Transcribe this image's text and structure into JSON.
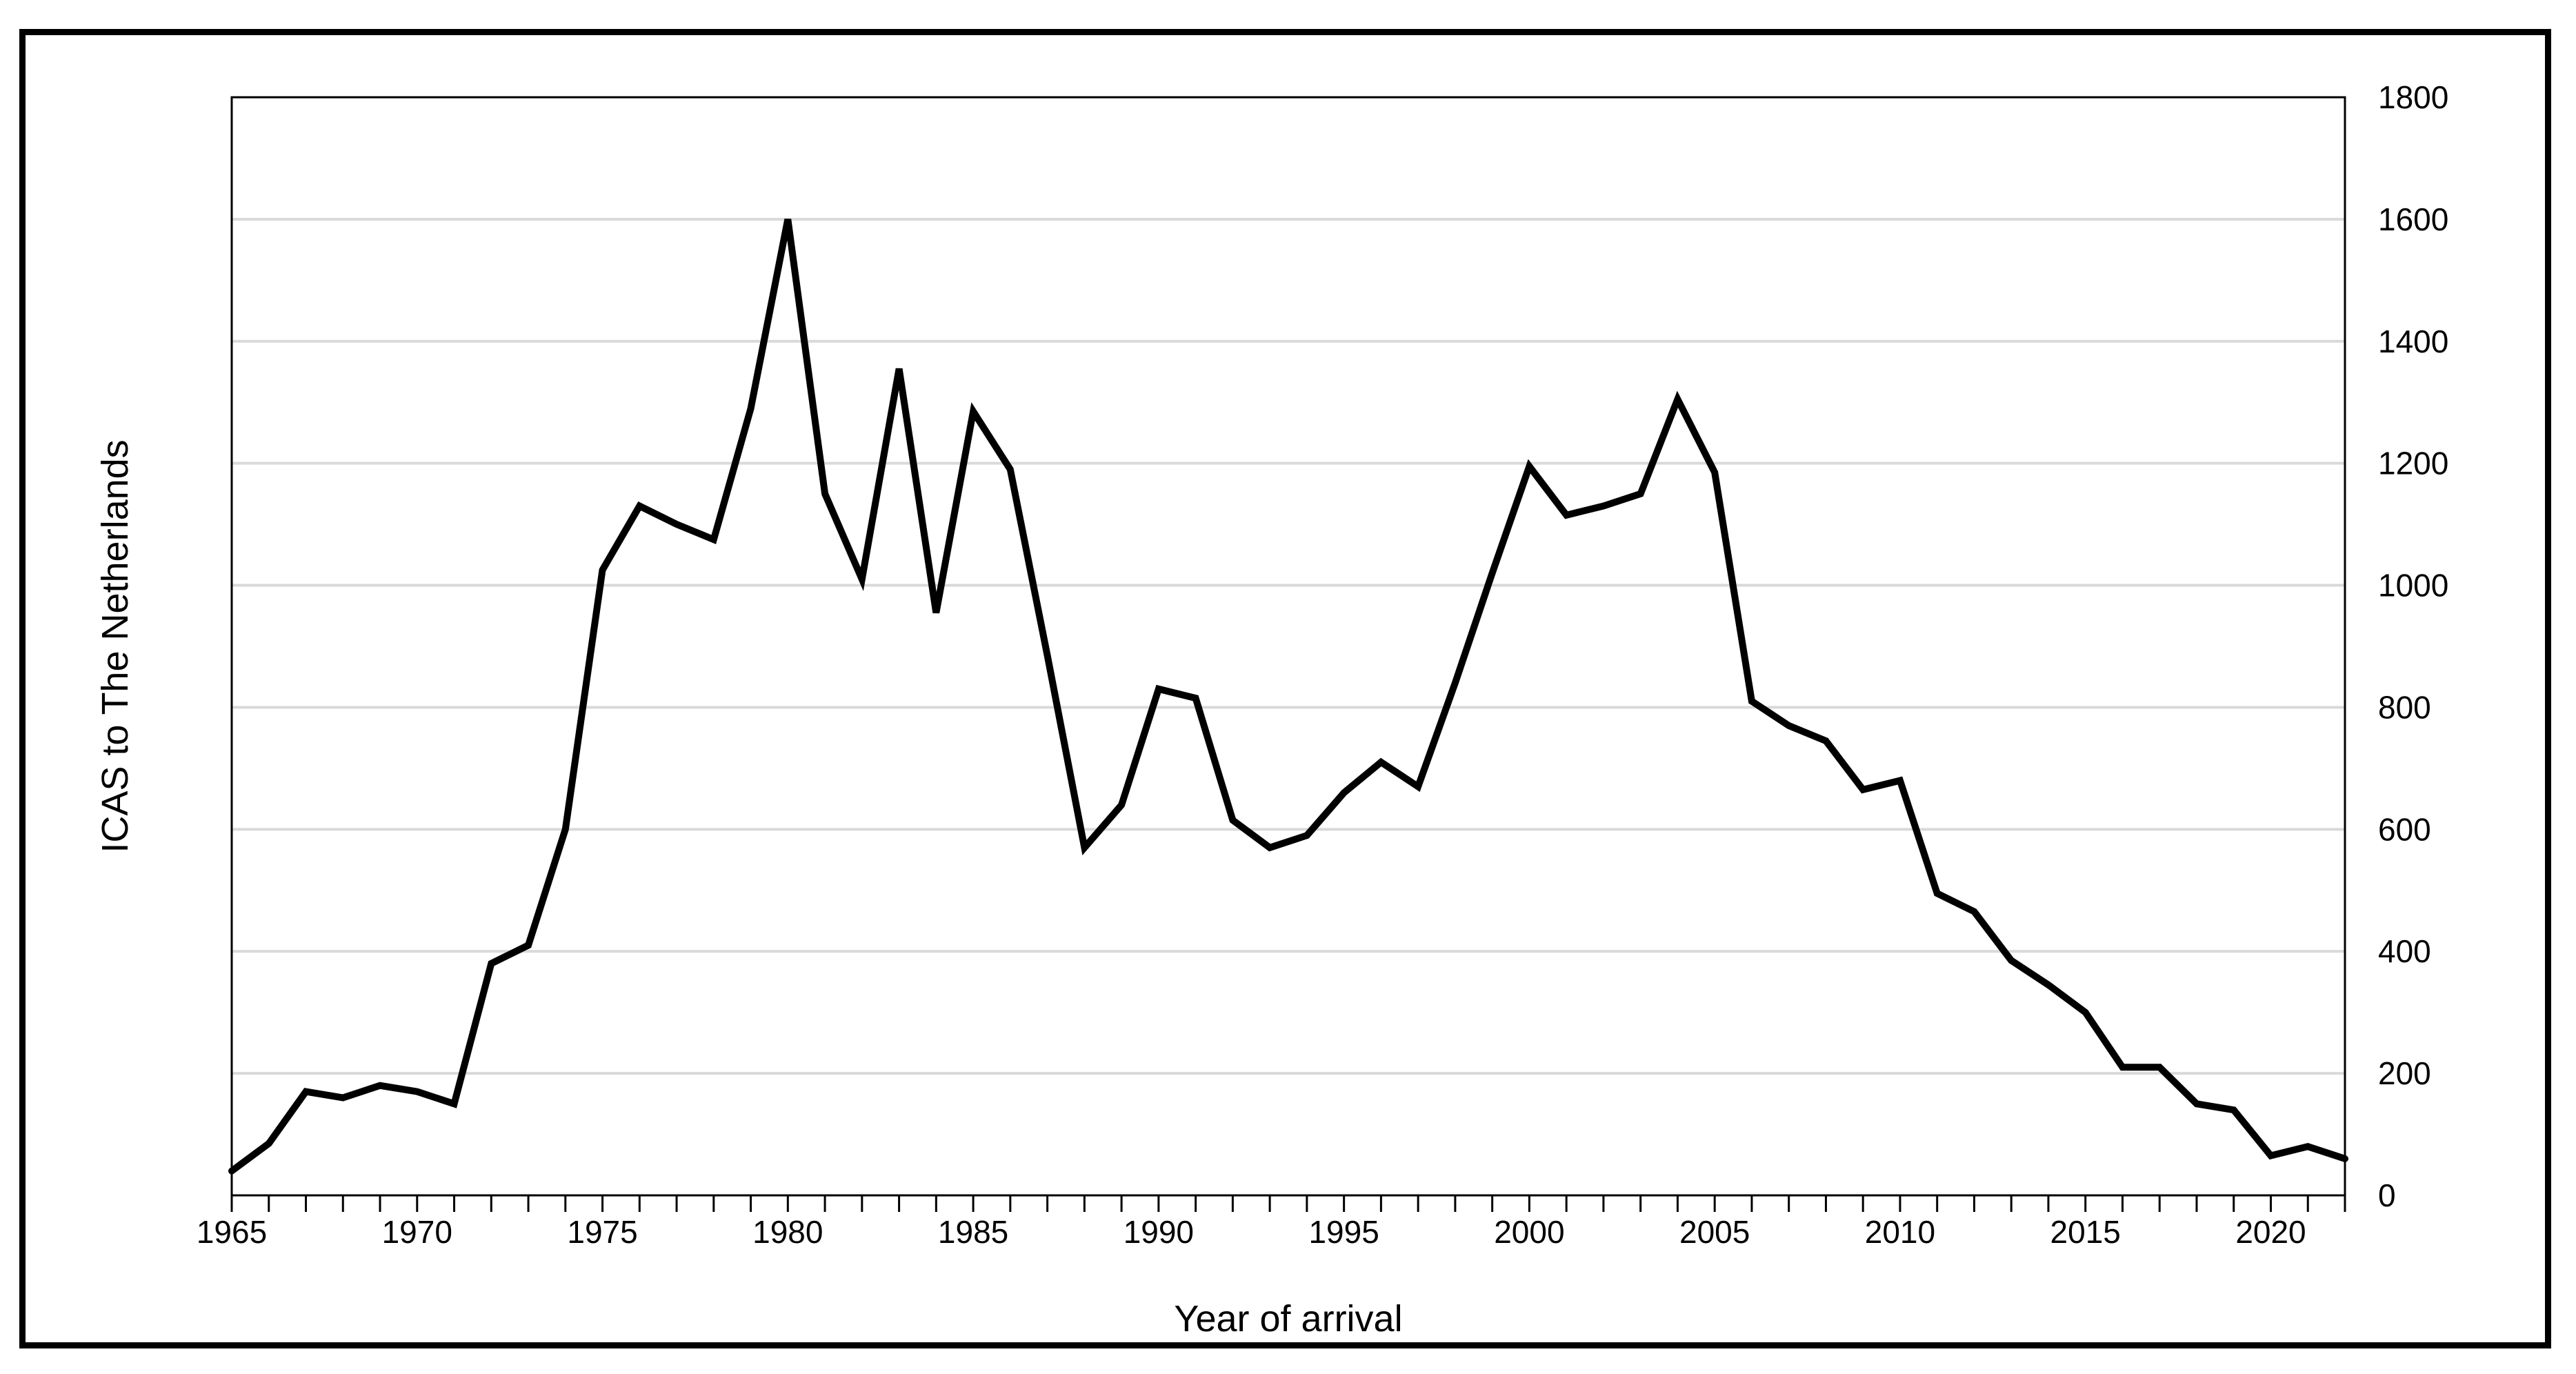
{
  "figure": {
    "y_axis_title": "ICAS to The Netherlands",
    "x_axis_title": "Year of arrival"
  },
  "chart_data": {
    "type": "line",
    "title": "",
    "xlabel": "Year of arrival",
    "ylabel": "ICAS to The Netherlands",
    "x": [
      1965,
      1966,
      1967,
      1968,
      1969,
      1970,
      1971,
      1972,
      1973,
      1974,
      1975,
      1976,
      1977,
      1978,
      1979,
      1980,
      1981,
      1982,
      1983,
      1984,
      1985,
      1986,
      1987,
      1988,
      1989,
      1990,
      1991,
      1992,
      1993,
      1994,
      1995,
      1996,
      1997,
      1998,
      1999,
      2000,
      2001,
      2002,
      2003,
      2004,
      2005,
      2006,
      2007,
      2008,
      2009,
      2010,
      2011,
      2012,
      2013,
      2014,
      2015,
      2016,
      2017,
      2018,
      2019,
      2020,
      2021,
      2022
    ],
    "values": [
      40,
      85,
      170,
      160,
      180,
      170,
      150,
      380,
      410,
      600,
      1025,
      1130,
      1100,
      1075,
      1290,
      1600,
      1150,
      1010,
      1355,
      955,
      1285,
      1190,
      885,
      570,
      640,
      830,
      815,
      615,
      570,
      590,
      660,
      710,
      670,
      840,
      1020,
      1195,
      1115,
      1130,
      1150,
      1305,
      1185,
      810,
      770,
      745,
      665,
      680,
      495,
      465,
      385,
      345,
      300,
      210,
      210,
      150,
      140,
      65,
      80,
      60
    ],
    "series_name": "ICAS to The Netherlands",
    "line_color": "#000000",
    "gridline_color": "#d9d9d9",
    "axis_color": "#000000",
    "ylim": [
      0,
      1800
    ],
    "y_tick_step": 200,
    "y_tick_labels": [
      "0",
      "200",
      "400",
      "600",
      "800",
      "1000",
      "1200",
      "1400",
      "1600",
      "1800"
    ],
    "y_axis_side": "right",
    "x_tick_labels": [
      "1965",
      "1970",
      "1975",
      "1980",
      "1985",
      "1990",
      "1995",
      "2000",
      "2005",
      "2010",
      "2015",
      "2020"
    ],
    "x_minor_tick_every_years": 1,
    "grid": "horizontal",
    "legend": "none"
  }
}
